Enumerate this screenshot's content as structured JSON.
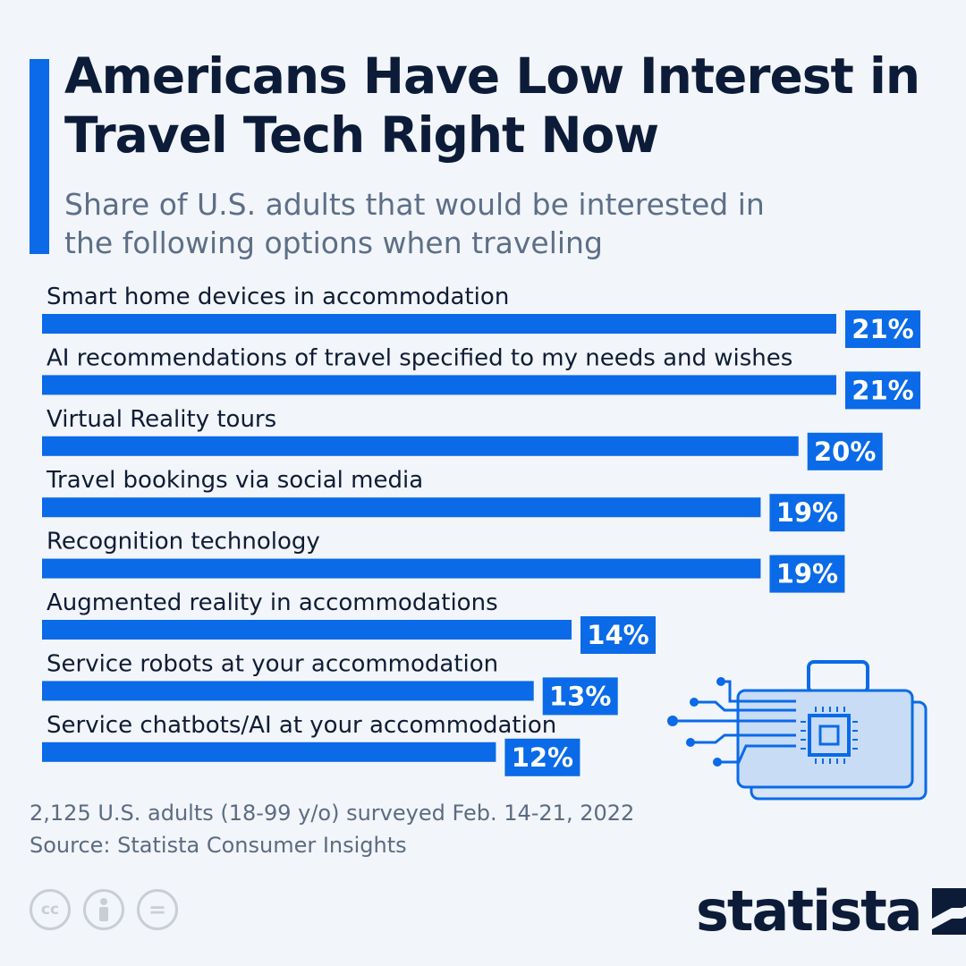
{
  "header": {
    "title": "Americans Have Low Interest in Travel Tech Right Now",
    "subtitle": "Share of U.S. adults that would be interested in the following options when traveling"
  },
  "chart_data": {
    "type": "bar",
    "orientation": "horizontal",
    "title": "Americans Have Low Interest in Travel Tech Right Now",
    "subtitle": "Share of U.S. adults that would be interested in the following options when traveling",
    "categories": [
      "Smart home devices in accommodation",
      "AI recommendations of travel specified to my needs and wishes",
      "Virtual Reality tours",
      "Travel bookings via social media",
      "Recognition technology",
      "Augmented reality in accommodations",
      "Service robots at your accommodation",
      "Service chatbots/AI at your accommodation"
    ],
    "values": [
      21,
      21,
      20,
      19,
      19,
      14,
      13,
      12
    ],
    "value_labels": [
      "21%",
      "21%",
      "20%",
      "19%",
      "19%",
      "14%",
      "13%",
      "12%"
    ],
    "unit": "%",
    "xlim": [
      0,
      22
    ],
    "grid": false,
    "bar_color": "#0a6ae8"
  },
  "footer": {
    "survey_note": "2,125 U.S. adults (18-99 y/o) surveyed Feb. 14-21, 2022",
    "source": "Source: Statista Consumer Insights",
    "license_icons": [
      "cc-icon",
      "attribution-icon",
      "no-derivatives-icon"
    ],
    "cc_text": "cc",
    "nd_text": "="
  },
  "brand": {
    "name": "statista",
    "accent_color": "#0a6ae8",
    "dark_color": "#0c1c38"
  },
  "illustration": {
    "icon": "briefcase-chip-icon"
  }
}
